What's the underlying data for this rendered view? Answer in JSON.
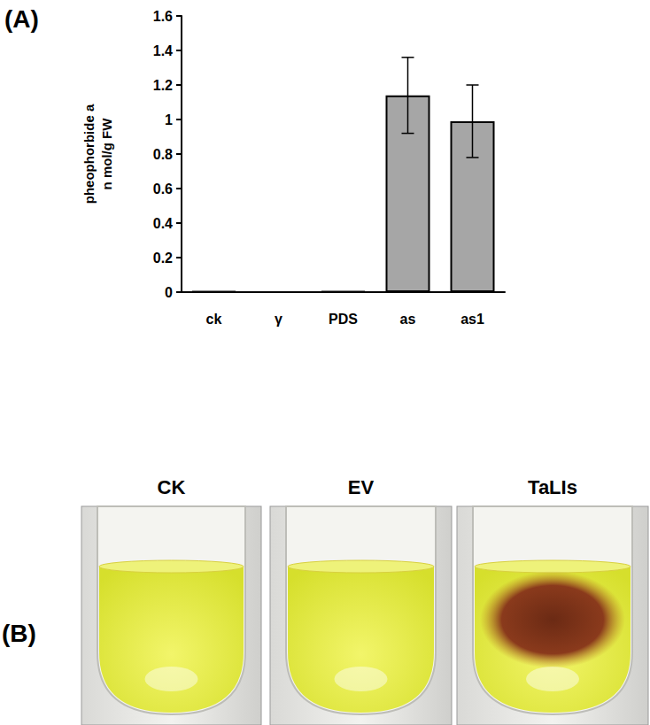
{
  "chart_data": {
    "type": "bar",
    "title": "(A)",
    "y_label": "pheophorbide a\nn mol/g FW",
    "categories": [
      "ck",
      "γ",
      "PDS",
      "as",
      "as1"
    ],
    "values": [
      0.005,
      0,
      0.005,
      1.14,
      0.99
    ],
    "errors": [
      0,
      0,
      0,
      0.22,
      0.21
    ],
    "color": "#a6a6a6",
    "ylim": [
      0,
      1.6
    ],
    "yticks": [
      0,
      0.2,
      0.4,
      0.6,
      0.8,
      1,
      1.2,
      1.4,
      1.6
    ],
    "grid": false
  },
  "photo_panel": {
    "label": "(B)",
    "tubes": [
      "CK",
      "EV",
      "TaLIs"
    ]
  }
}
